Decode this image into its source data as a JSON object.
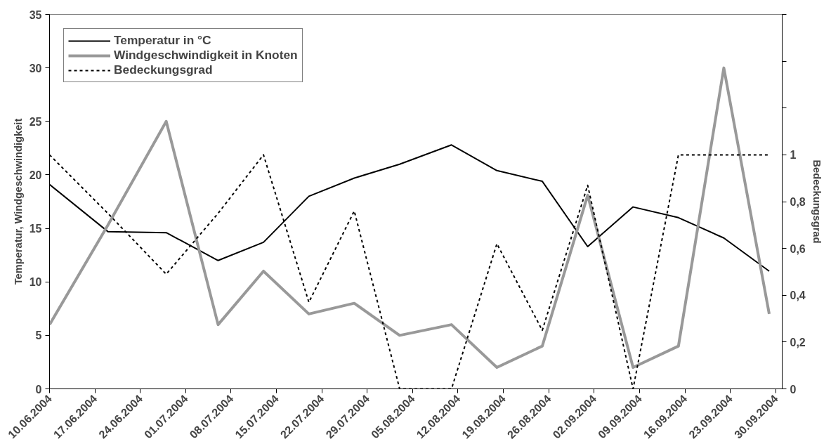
{
  "chart_data": {
    "type": "line",
    "ylabel": "Temperatur, Windgeschwindigkeit",
    "y2label": "Bedeckungsgrad",
    "x": [
      "2004-06-10",
      "2004-06-19",
      "2004-06-28",
      "2004-07-06",
      "2004-07-13",
      "2004-07-20",
      "2004-07-27",
      "2004-08-03",
      "2004-08-11",
      "2004-08-18",
      "2004-08-25",
      "2004-09-01",
      "2004-09-08",
      "2004-09-15",
      "2004-09-22",
      "2004-09-29"
    ],
    "series": [
      {
        "name": "Temperatur in °C",
        "color": "#000000",
        "line_style": "solid",
        "values": [
          19.1,
          14.7,
          14.6,
          12.0,
          13.7,
          18.0,
          19.7,
          21.0,
          22.8,
          20.4,
          19.4,
          13.3,
          17.0,
          16.0,
          14.1,
          11.0
        ]
      },
      {
        "name": "Windgeschwindigkeit in Knoten",
        "color": "#999999",
        "line_style": "solid",
        "values": [
          6,
          15.3,
          25,
          6,
          11,
          7,
          8,
          5,
          6,
          2,
          4,
          18.1,
          2,
          4,
          30,
          7
        ]
      },
      {
        "name": "Bedeckungsgrad",
        "color": "#000000",
        "line_style": "dotted",
        "axis": "y2",
        "values": [
          1.0,
          0.75,
          0.49,
          0.75,
          1.0,
          0.37,
          0.76,
          0,
          0,
          0.62,
          0.25,
          0.87,
          0,
          1,
          1,
          1
        ]
      }
    ],
    "xlim": [
      "2004-06-10",
      "2004-10-01"
    ],
    "xticks": [
      {
        "value": "2004-06-10",
        "label": "10.06.2004"
      },
      {
        "value": "2004-06-17",
        "label": "17.06.2004"
      },
      {
        "value": "2004-06-24",
        "label": "24.06.2004"
      },
      {
        "value": "2004-07-01",
        "label": "01.07.2004"
      },
      {
        "value": "2004-07-08",
        "label": "08.07.2004"
      },
      {
        "value": "2004-07-15",
        "label": "15.07.2004"
      },
      {
        "value": "2004-07-22",
        "label": "22.07.2004"
      },
      {
        "value": "2004-07-29",
        "label": "29.07.2004"
      },
      {
        "value": "2004-08-05",
        "label": "05.08.2004"
      },
      {
        "value": "2004-08-12",
        "label": "12.08.2004"
      },
      {
        "value": "2004-08-19",
        "label": "19.08.2004"
      },
      {
        "value": "2004-08-26",
        "label": "26.08.2004"
      },
      {
        "value": "2004-09-02",
        "label": "02.09.2004"
      },
      {
        "value": "2004-09-09",
        "label": "09.09.2004"
      },
      {
        "value": "2004-09-16",
        "label": "16.09.2004"
      },
      {
        "value": "2004-09-23",
        "label": "23.09.2004"
      },
      {
        "value": "2004-09-30",
        "label": "30.09.2004"
      }
    ],
    "ylim": [
      0,
      35
    ],
    "yticks": [
      0,
      5,
      10,
      15,
      20,
      25,
      30,
      35
    ],
    "y2lim": [
      0,
      1.6
    ],
    "y2ticks": [
      0,
      {
        "value": 0.2,
        "label": "0,2"
      },
      {
        "value": 0.4,
        "label": "0,4"
      },
      {
        "value": 0.6,
        "label": "0,6"
      },
      {
        "value": 0.8,
        "label": "0,8"
      },
      1,
      {
        "value": 1.2,
        "label": null
      },
      {
        "value": 1.4,
        "label": null
      },
      {
        "value": 1.6,
        "label": null
      }
    ],
    "grid": false,
    "legend": "top left"
  }
}
